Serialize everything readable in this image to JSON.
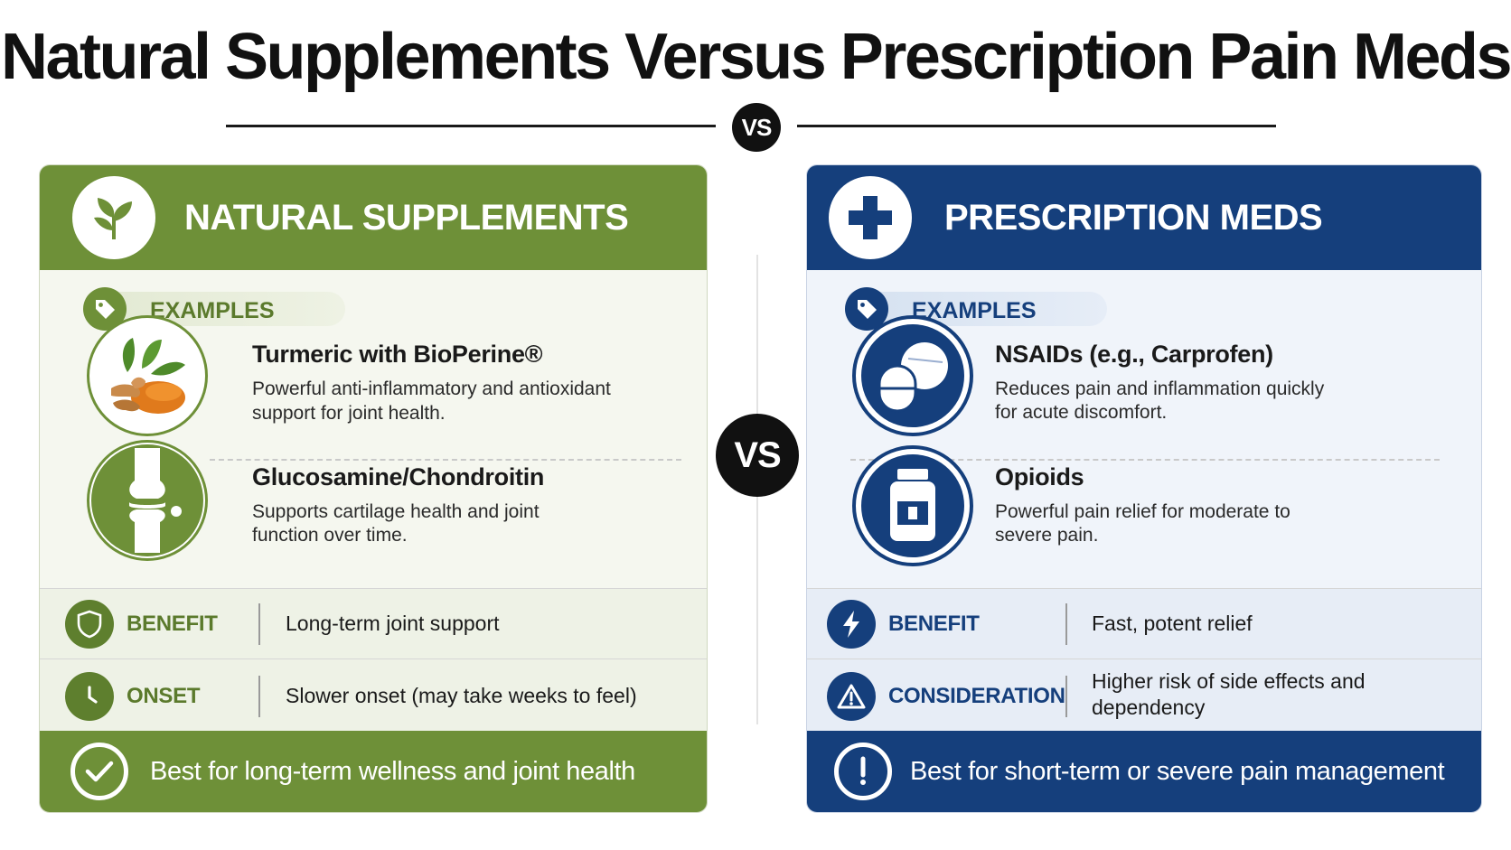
{
  "page": {
    "title": "Natural Supplements  Versus Prescription Pain Meds",
    "vs_small": "VS",
    "vs_big": "VS"
  },
  "colors": {
    "natural_green": "#6e9038",
    "rx_blue": "#153f7c"
  },
  "natural": {
    "header_icon": "leaf-icon",
    "title": "NATURAL SUPPLEMENTS",
    "examples_label": "EXAMPLES",
    "examples": [
      {
        "icon": "turmeric-image",
        "name": "Turmeric with BioPerine®",
        "desc_line1": "Powerful anti-inflammatory and antioxidant",
        "desc_line2": "support for joint health."
      },
      {
        "icon": "knee-joint-icon",
        "name": "Glucosamine/Chondroitin",
        "desc_line1": "Supports cartilage health and joint",
        "desc_line2": "function over time."
      }
    ],
    "rows": [
      {
        "icon": "shield-icon",
        "label": "BENEFIT",
        "value_line1": "Long-term joint support",
        "value_line2": ""
      },
      {
        "icon": "clock-icon",
        "label": "ONSET",
        "value_line1": "Slower onset (may take weeks to feel)",
        "value_line2": ""
      }
    ],
    "footer_icon": "checkmark-icon",
    "footer": "Best for long-term wellness and joint health"
  },
  "rx": {
    "header_icon": "medical-cross-icon",
    "title": "PRESCRIPTION MEDS",
    "examples_label": "EXAMPLES",
    "examples": [
      {
        "icon": "pills-icon",
        "name": "NSAIDs (e.g., Carprofen)",
        "desc_line1": "Reduces pain and inflammation quickly",
        "desc_line2": "for acute discomfort."
      },
      {
        "icon": "pill-bottle-icon",
        "name": "Opioids",
        "desc_line1": "Powerful pain relief for moderate to",
        "desc_line2": "severe pain."
      }
    ],
    "rows": [
      {
        "icon": "lightning-icon",
        "label": "BENEFIT",
        "value_line1": "Fast, potent relief",
        "value_line2": ""
      },
      {
        "icon": "warning-icon",
        "label": "CONSIDERATION",
        "value_line1": "Higher risk of side effects and",
        "value_line2": "dependency"
      }
    ],
    "footer_icon": "exclamation-icon",
    "footer": "Best for short-term or severe pain management"
  }
}
